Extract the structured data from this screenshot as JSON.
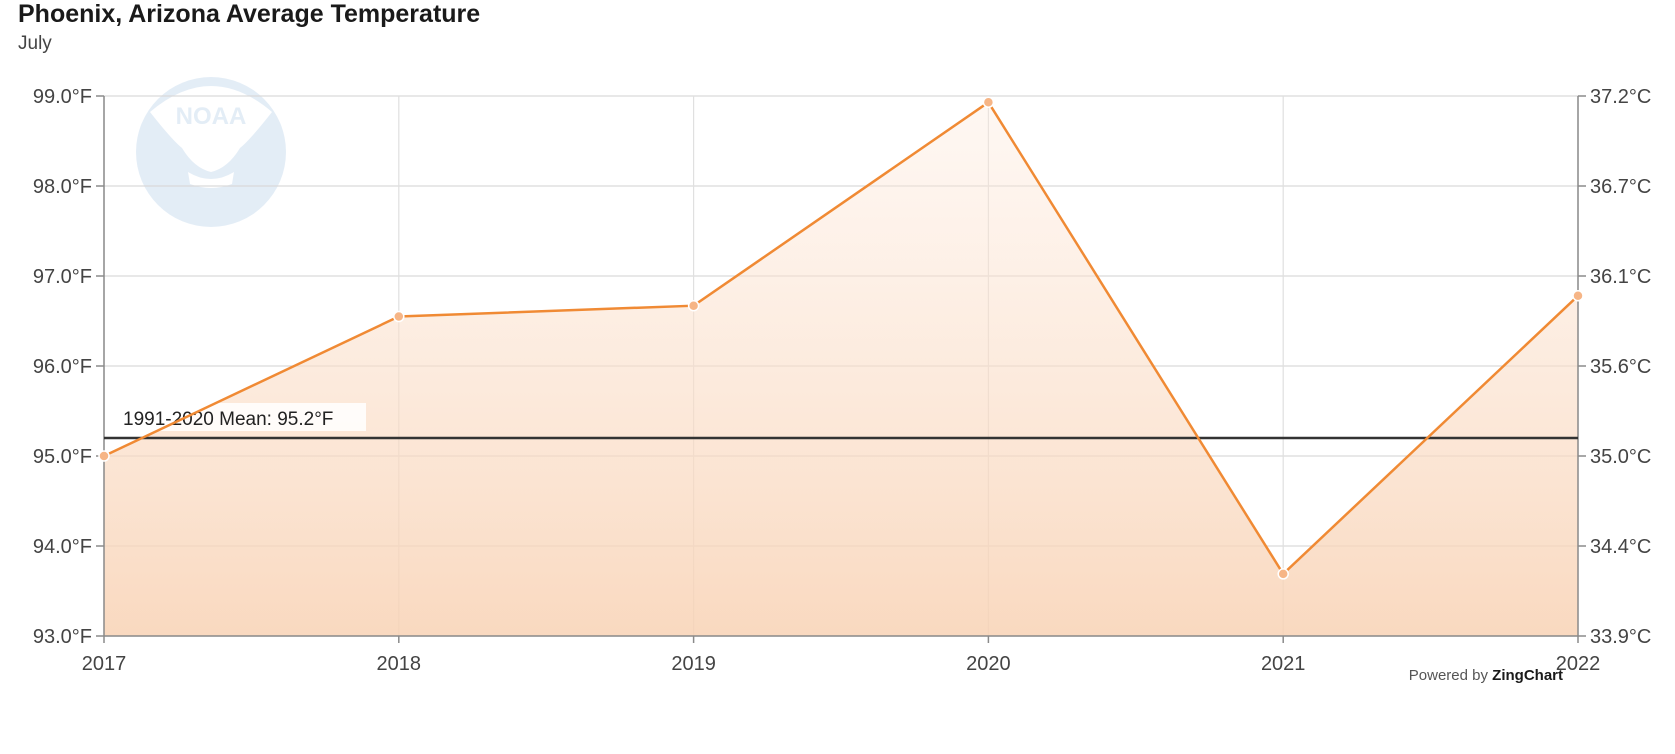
{
  "chart_data": {
    "type": "area",
    "title": "Phoenix, Arizona Average Temperature",
    "subtitle": "July",
    "categories": [
      "2017",
      "2018",
      "2019",
      "2020",
      "2021",
      "2022"
    ],
    "series": [
      {
        "values": [
          95.0,
          96.55,
          96.67,
          98.93,
          93.69,
          96.78
        ],
        "color": "#f08a34"
      }
    ],
    "ylim": [
      93.0,
      99.0
    ],
    "y_ticks_left": [
      "93.0°F",
      "94.0°F",
      "95.0°F",
      "96.0°F",
      "97.0°F",
      "98.0°F",
      "99.0°F"
    ],
    "y_ticks_right": [
      "33.9°C",
      "34.4°C",
      "35.0°C",
      "35.6°C",
      "36.1°C",
      "36.7°C",
      "37.2°C"
    ],
    "reference_line": {
      "value": 95.2,
      "label": "1991-2020 Mean: 95.2°F",
      "color": "#333333"
    },
    "grid": true,
    "watermark": {
      "text": "NOAA"
    }
  },
  "footer": {
    "powered_prefix": "Powered by",
    "powered_brand": "ZingChart"
  }
}
